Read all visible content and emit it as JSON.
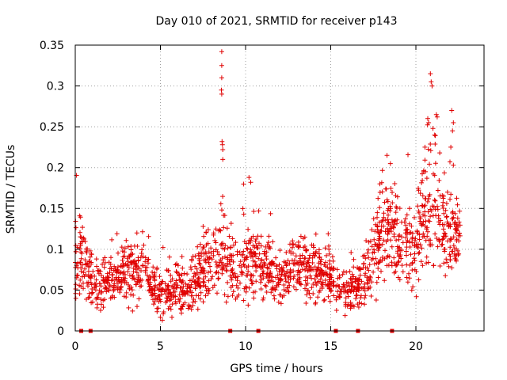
{
  "chart_data": {
    "type": "scatter",
    "title": "Day 010 of 2021, SRMTID for receiver p143",
    "xlabel": "GPS time / hours",
    "ylabel": "SRMTID / TECUs",
    "xlim": [
      0,
      24
    ],
    "ylim": [
      0,
      0.35
    ],
    "xticks": [
      0,
      5,
      10,
      15,
      20
    ],
    "xtick_labels": [
      "0",
      "5",
      "10",
      "15",
      "20"
    ],
    "yticks": [
      0,
      0.05,
      0.1,
      0.15,
      0.2,
      0.25,
      0.3,
      0.35
    ],
    "ytick_labels": [
      "0",
      "0.05",
      "0.1",
      "0.15",
      "0.2",
      "0.25",
      "0.3",
      "0.35"
    ],
    "grid": true,
    "marker": "+",
    "color": "#e00000",
    "series": [
      {
        "name": "SRMTID",
        "profile": [
          [
            0.0,
            0.085,
            0.03
          ],
          [
            0.3,
            0.095,
            0.03
          ],
          [
            0.6,
            0.08,
            0.025
          ],
          [
            1.0,
            0.06,
            0.02
          ],
          [
            1.5,
            0.055,
            0.02
          ],
          [
            2.0,
            0.06,
            0.02
          ],
          [
            2.5,
            0.065,
            0.02
          ],
          [
            3.0,
            0.07,
            0.025
          ],
          [
            3.5,
            0.075,
            0.025
          ],
          [
            4.0,
            0.08,
            0.025
          ],
          [
            4.5,
            0.05,
            0.015
          ],
          [
            5.0,
            0.045,
            0.015
          ],
          [
            5.5,
            0.05,
            0.02
          ],
          [
            6.0,
            0.055,
            0.02
          ],
          [
            6.5,
            0.05,
            0.02
          ],
          [
            7.0,
            0.055,
            0.02
          ],
          [
            7.5,
            0.07,
            0.025
          ],
          [
            8.0,
            0.085,
            0.03
          ],
          [
            8.5,
            0.1,
            0.035
          ],
          [
            9.0,
            0.085,
            0.03
          ],
          [
            9.5,
            0.07,
            0.025
          ],
          [
            10.0,
            0.09,
            0.035
          ],
          [
            10.5,
            0.085,
            0.03
          ],
          [
            11.0,
            0.08,
            0.025
          ],
          [
            11.5,
            0.07,
            0.02
          ],
          [
            12.0,
            0.065,
            0.02
          ],
          [
            12.5,
            0.07,
            0.02
          ],
          [
            13.0,
            0.08,
            0.025
          ],
          [
            13.5,
            0.075,
            0.025
          ],
          [
            14.0,
            0.075,
            0.025
          ],
          [
            14.5,
            0.07,
            0.02
          ],
          [
            15.0,
            0.065,
            0.02
          ],
          [
            15.5,
            0.05,
            0.015
          ],
          [
            16.0,
            0.05,
            0.018
          ],
          [
            16.5,
            0.055,
            0.02
          ],
          [
            17.0,
            0.065,
            0.02
          ],
          [
            17.5,
            0.09,
            0.03
          ],
          [
            18.0,
            0.12,
            0.035
          ],
          [
            18.5,
            0.13,
            0.035
          ],
          [
            19.0,
            0.105,
            0.03
          ],
          [
            19.5,
            0.1,
            0.03
          ],
          [
            20.0,
            0.1,
            0.035
          ],
          [
            20.5,
            0.14,
            0.045
          ],
          [
            21.0,
            0.15,
            0.05
          ],
          [
            21.5,
            0.12,
            0.04
          ],
          [
            22.0,
            0.12,
            0.035
          ],
          [
            22.5,
            0.115,
            0.03
          ]
        ],
        "spikes": [
          [
            8.6,
            0.342
          ],
          [
            8.6,
            0.325
          ],
          [
            8.6,
            0.31
          ],
          [
            8.58,
            0.295
          ],
          [
            8.6,
            0.29
          ],
          [
            8.62,
            0.232
          ],
          [
            8.64,
            0.228
          ],
          [
            8.66,
            0.222
          ],
          [
            8.66,
            0.21
          ],
          [
            20.85,
            0.315
          ],
          [
            20.9,
            0.305
          ],
          [
            20.95,
            0.3
          ],
          [
            21.2,
            0.265
          ],
          [
            21.25,
            0.262
          ],
          [
            20.7,
            0.26
          ],
          [
            20.75,
            0.255
          ],
          [
            21.0,
            0.248
          ],
          [
            22.1,
            0.27
          ],
          [
            22.2,
            0.255
          ],
          [
            22.15,
            0.245
          ],
          [
            21.1,
            0.24
          ],
          [
            22.05,
            0.225
          ],
          [
            18.3,
            0.215
          ],
          [
            18.5,
            0.205
          ],
          [
            21.4,
            0.218
          ],
          [
            22.0,
            0.207
          ],
          [
            22.2,
            0.203
          ],
          [
            10.2,
            0.188
          ],
          [
            10.3,
            0.182
          ]
        ],
        "count": 1750,
        "time_range": [
          0.0,
          22.6
        ]
      }
    ],
    "markers_on_axis": [
      0.35,
      0.9,
      9.1,
      10.75,
      15.3,
      16.6,
      18.6
    ],
    "markers_value": 0
  }
}
